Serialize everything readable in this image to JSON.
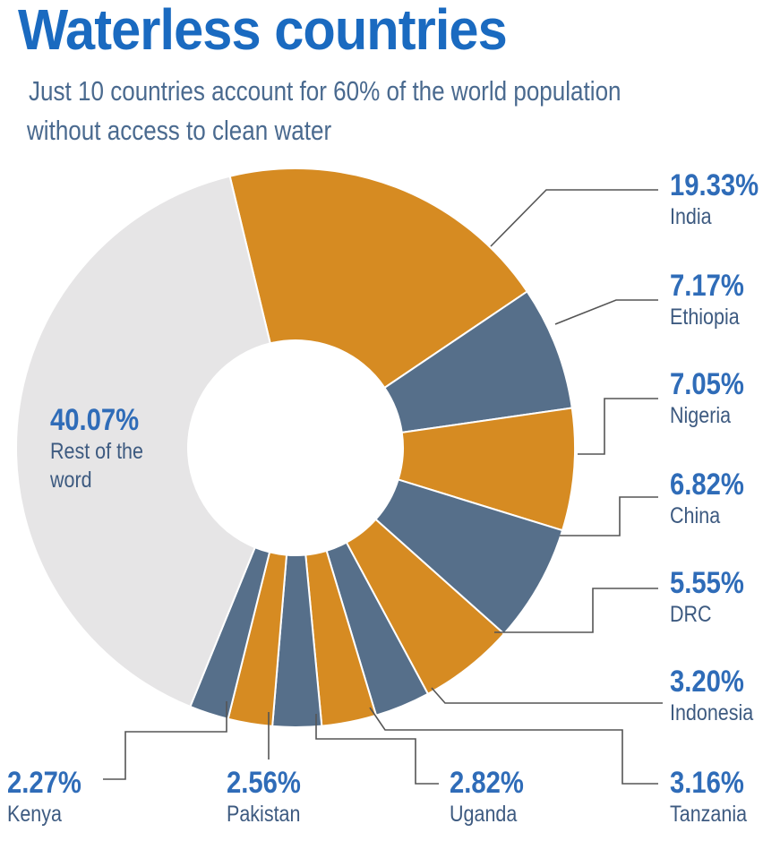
{
  "chart_data": {
    "type": "pie",
    "title": "Waterless countries",
    "subtitle_line1": "Just 10 countries account for 60% of the world population",
    "subtitle_line2": "without  access to clean water",
    "slices": [
      {
        "name": "India",
        "value": 19.33,
        "label": "19.33%",
        "color": "#d68b22"
      },
      {
        "name": "Ethiopia",
        "value": 7.17,
        "label": "7.17%",
        "color": "#566f8a"
      },
      {
        "name": "Nigeria",
        "value": 7.05,
        "label": "7.05%",
        "color": "#d68b22"
      },
      {
        "name": "China",
        "value": 6.82,
        "label": "6.82%",
        "color": "#566f8a"
      },
      {
        "name": "DRC",
        "value": 5.55,
        "label": "5.55%",
        "color": "#d68b22"
      },
      {
        "name": "Indonesia",
        "value": 3.2,
        "label": "3.20%",
        "color": "#566f8a"
      },
      {
        "name": "Tanzania",
        "value": 3.16,
        "label": "3.16%",
        "color": "#d68b22"
      },
      {
        "name": "Uganda",
        "value": 2.82,
        "label": "2.82%",
        "color": "#566f8a"
      },
      {
        "name": "Pakistan",
        "value": 2.56,
        "label": "2.56%",
        "color": "#d68b22"
      },
      {
        "name": "Kenya",
        "value": 2.27,
        "label": "2.27%",
        "color": "#566f8a"
      },
      {
        "name": "Rest of the word",
        "value": 40.07,
        "label": "40.07%",
        "color": "#e6e5e6"
      }
    ],
    "rest_name_line1": "Rest of the",
    "rest_name_line2": "word"
  }
}
